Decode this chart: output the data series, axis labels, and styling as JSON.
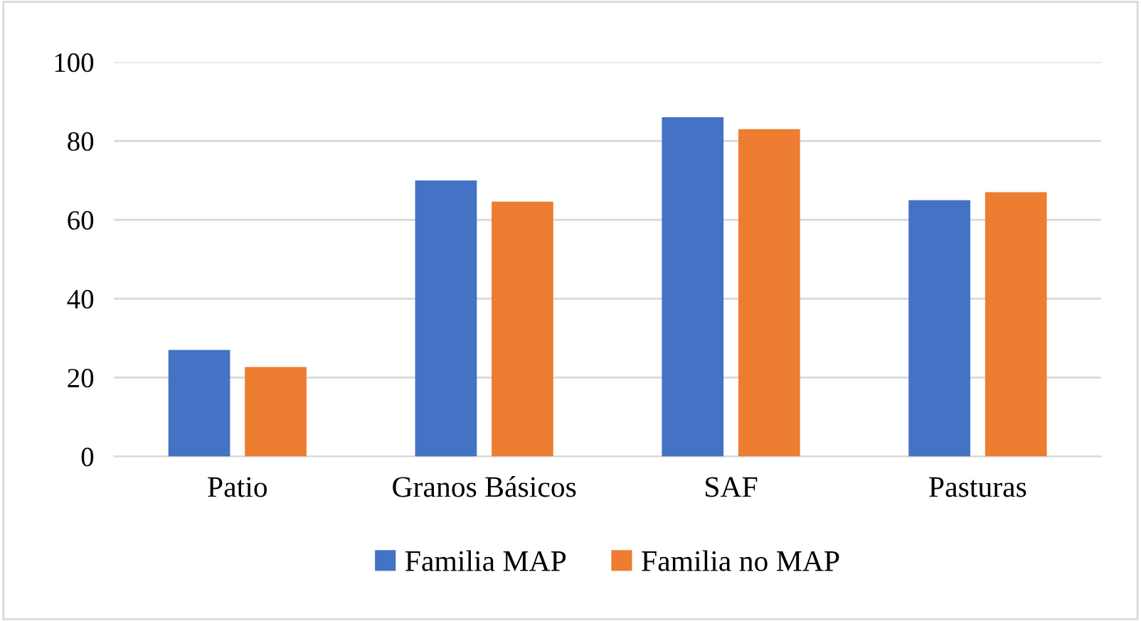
{
  "chart_data": {
    "type": "bar",
    "categories": [
      "Patio",
      "Granos Básicos",
      "SAF",
      "Pasturas"
    ],
    "series": [
      {
        "name": "Familia MAP",
        "color": "#4472c4",
        "values": [
          27,
          70,
          86,
          65
        ]
      },
      {
        "name": "Familia no MAP",
        "color": "#ed7d31",
        "values": [
          22.7,
          64.6,
          83,
          67
        ]
      }
    ],
    "ylim": [
      0,
      100
    ],
    "yticks": [
      0,
      20,
      40,
      60,
      80,
      100
    ],
    "grid": "y",
    "legend": "bottom"
  }
}
